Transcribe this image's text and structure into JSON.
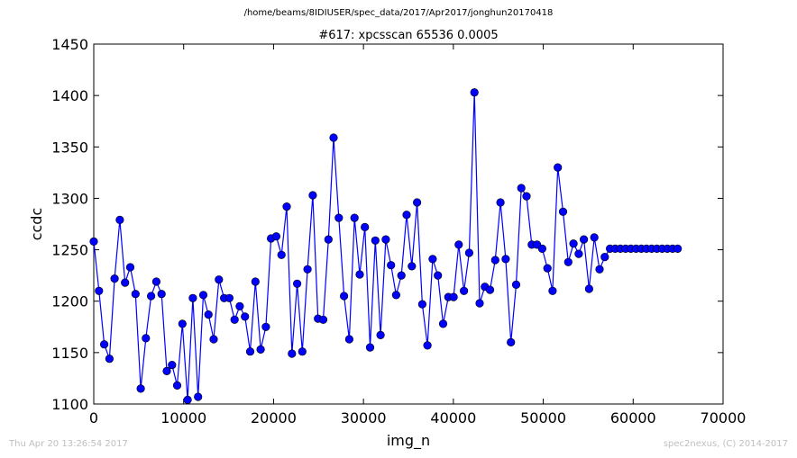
{
  "header": {
    "path": "/home/beams/8IDIUSER/spec_data/2017/Apr2017/jonghun20170418"
  },
  "footer": {
    "timestamp": "Thu Apr 20 13:26:54 2017",
    "credit": "spec2nexus, (C) 2014-2017"
  },
  "chart_data": {
    "type": "line",
    "title": "#617: xpcsscan 65536 0.0005",
    "xlabel": "img_n",
    "ylabel": "ccdc",
    "xlim": [
      0,
      70000
    ],
    "ylim": [
      1100,
      1450
    ],
    "xticks": [
      "0",
      "10000",
      "20000",
      "30000",
      "40000",
      "50000",
      "60000",
      "70000"
    ],
    "yticks": [
      "1100",
      "1150",
      "1200",
      "1250",
      "1300",
      "1350",
      "1400",
      "1450"
    ],
    "grid": false,
    "colors": {
      "series": "#0000ff"
    },
    "series": [
      {
        "x": [
          0,
          580,
          1160,
          1740,
          2320,
          2900,
          3480,
          4060,
          4640,
          5220,
          5800,
          6380,
          6960,
          7540,
          8120,
          8700,
          9280,
          9860,
          10440,
          11020,
          11600,
          12180,
          12760,
          13340,
          13920,
          14500,
          15080,
          15660,
          16240,
          16820,
          17400,
          17980,
          18560,
          19140,
          19720,
          20300,
          20880,
          21460,
          22040,
          22620,
          23200,
          23780,
          24360,
          24940,
          25520,
          26100,
          26680,
          27260,
          27840,
          28420,
          29000,
          29580,
          30160,
          30740,
          31320,
          31900,
          32480,
          33060,
          33640,
          34220,
          34800,
          35380,
          35960,
          36540,
          37120,
          37700,
          38280,
          38860,
          39440,
          40020,
          40600,
          41180,
          41760,
          42340,
          42920,
          43500,
          44080,
          44660,
          45240,
          45820,
          46400,
          46980,
          47560,
          48140,
          48720,
          49300,
          49880,
          50460,
          51040,
          51620,
          52200,
          52780,
          53360,
          53940,
          54520,
          55100,
          55680,
          56260,
          56840,
          57420,
          58000,
          58580,
          59160,
          59740,
          60320,
          60900,
          61480,
          62060,
          62640,
          63220,
          63800,
          64380,
          64960
        ],
        "y": [
          1258,
          1210,
          1158,
          1144,
          1222,
          1279,
          1218,
          1233,
          1207,
          1115,
          1164,
          1205,
          1219,
          1207,
          1132,
          1138,
          1118,
          1178,
          1104,
          1203,
          1107,
          1206,
          1187,
          1163,
          1221,
          1203,
          1203,
          1182,
          1195,
          1185,
          1151,
          1219,
          1153,
          1175,
          1261,
          1263,
          1245,
          1292,
          1149,
          1217,
          1151,
          1231,
          1303,
          1183,
          1182,
          1260,
          1359,
          1281,
          1205,
          1163,
          1281,
          1226,
          1272,
          1155,
          1259,
          1167,
          1260,
          1235,
          1206,
          1225,
          1284,
          1234,
          1296,
          1197,
          1157,
          1241,
          1225,
          1178,
          1204,
          1204,
          1255,
          1210,
          1247,
          1403,
          1198,
          1214,
          1211,
          1240,
          1296,
          1241,
          1160,
          1216,
          1310,
          1302,
          1255,
          1255,
          1251,
          1232,
          1210,
          1330,
          1287,
          1238,
          1256,
          1246,
          1260,
          1212,
          1262,
          1231,
          1243,
          1251,
          1251,
          1251,
          1251,
          1251,
          1251,
          1251,
          1251,
          1251,
          1251,
          1251,
          1251,
          1251,
          1251
        ]
      }
    ]
  }
}
